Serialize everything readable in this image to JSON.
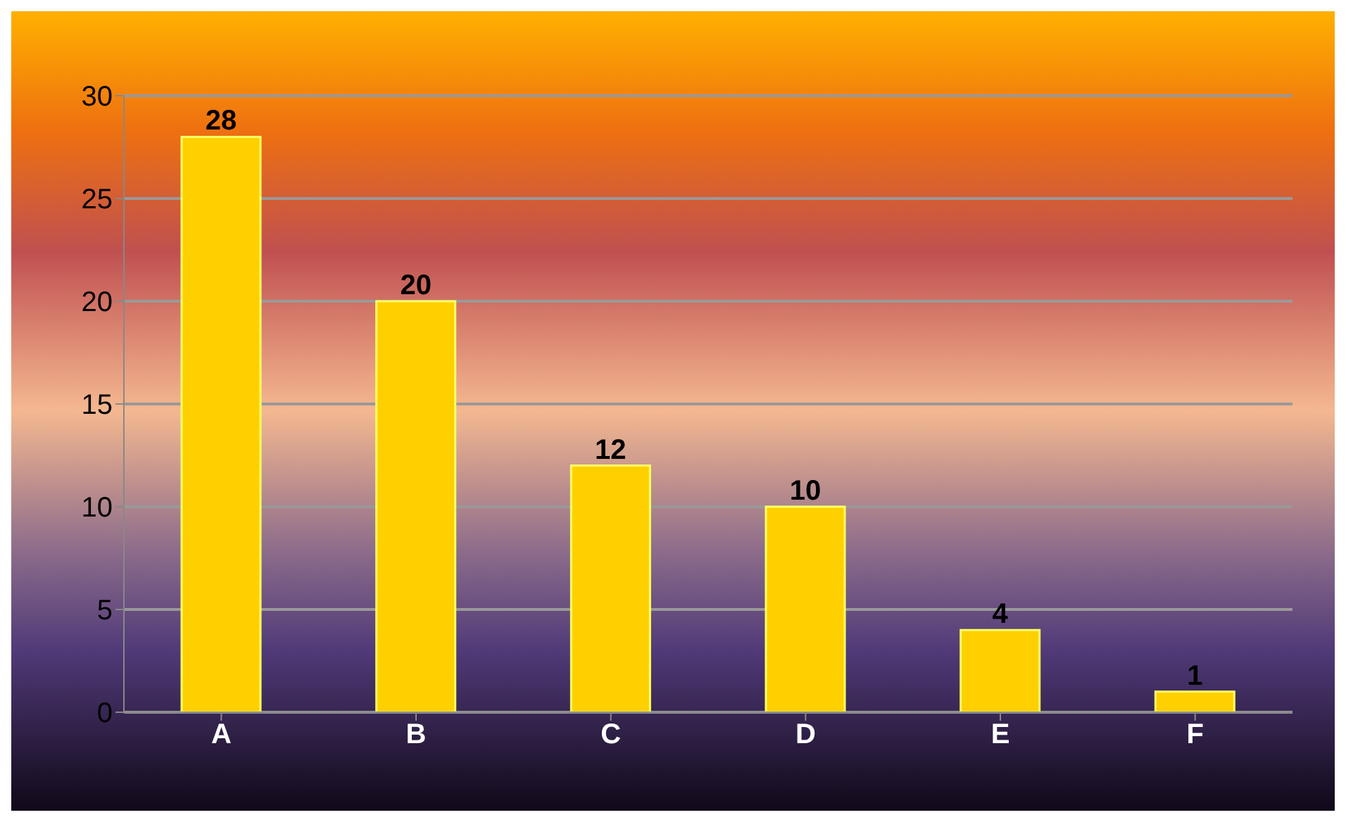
{
  "chart_data": {
    "type": "bar",
    "categories": [
      "A",
      "B",
      "C",
      "D",
      "E",
      "F"
    ],
    "values": [
      28,
      20,
      12,
      10,
      4,
      1
    ],
    "color": "#ffd000",
    "ylim": [
      0,
      30
    ],
    "yticks": [
      0,
      5,
      10,
      15,
      20,
      25,
      30
    ],
    "grid": "y",
    "data_labels": true
  }
}
